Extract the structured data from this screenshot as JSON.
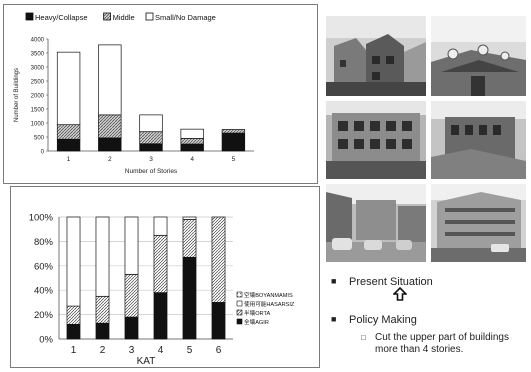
{
  "colors": {
    "dark": "#111111",
    "middle_hatch": "#8a8a8a",
    "light": "#ffffff",
    "grid": "#c8c8c8",
    "axis": "#555555"
  },
  "chart_data": [
    {
      "type": "bar",
      "stacked": true,
      "title": "",
      "legend_position": "top",
      "series": [
        {
          "name": "Heavy/Collapse",
          "values": [
            420,
            470,
            260,
            250,
            640
          ]
        },
        {
          "name": "Middle",
          "values": [
            520,
            820,
            430,
            200,
            130
          ]
        },
        {
          "name": "Small/No Damage",
          "values": [
            2590,
            2500,
            600,
            330,
            0
          ]
        }
      ],
      "categories": [
        "1",
        "2",
        "3",
        "4",
        "5"
      ],
      "xlabel": "Number of Stories",
      "ylabel": "Number of Buildings",
      "ylim": [
        0,
        4000
      ],
      "yticks": [
        "0",
        "500",
        "1000",
        "1500",
        "2000",
        "2500",
        "3000",
        "3500",
        "4000"
      ],
      "grid": false
    },
    {
      "type": "bar",
      "stacked": true,
      "percent": true,
      "title": "",
      "legend_position": "right",
      "series": [
        {
          "name": "全壊AGIR",
          "values": [
            12,
            13,
            18,
            38,
            67,
            30
          ]
        },
        {
          "name": "半壊ORTA",
          "values": [
            15,
            22,
            35,
            47,
            31,
            70
          ]
        },
        {
          "name": "使用可能HASARSIZ",
          "values": [
            73,
            65,
            47,
            15,
            2,
            0
          ]
        },
        {
          "name": "空壊BOYANMAMIS",
          "values": [
            0,
            0,
            0,
            0,
            0,
            0
          ]
        }
      ],
      "legend_order": [
        "空壊BOYANMAMIS",
        "使用可能HASARSIZ",
        "半壊ORTA",
        "全壊AGIR"
      ],
      "categories": [
        "1",
        "2",
        "3",
        "4",
        "5",
        "6"
      ],
      "xlabel": "KAT",
      "ylabel": "",
      "ylim": [
        0,
        100
      ],
      "yticks": [
        "0%",
        "20%",
        "40%",
        "60%",
        "80%",
        "100%"
      ],
      "grid": true
    }
  ],
  "photos": [
    {
      "name": "photo-street-rooftops"
    },
    {
      "name": "photo-satellite-dishes"
    },
    {
      "name": "photo-apartment-facade"
    },
    {
      "name": "photo-brick-building"
    },
    {
      "name": "photo-street-cars"
    },
    {
      "name": "photo-corner-building"
    }
  ],
  "bullets": {
    "item1": "Present Situation",
    "item2": "Policy Making",
    "sub1": "Cut the upper part of buildings more than 4 stories.",
    "mark": "■",
    "sub_mark": "□"
  }
}
